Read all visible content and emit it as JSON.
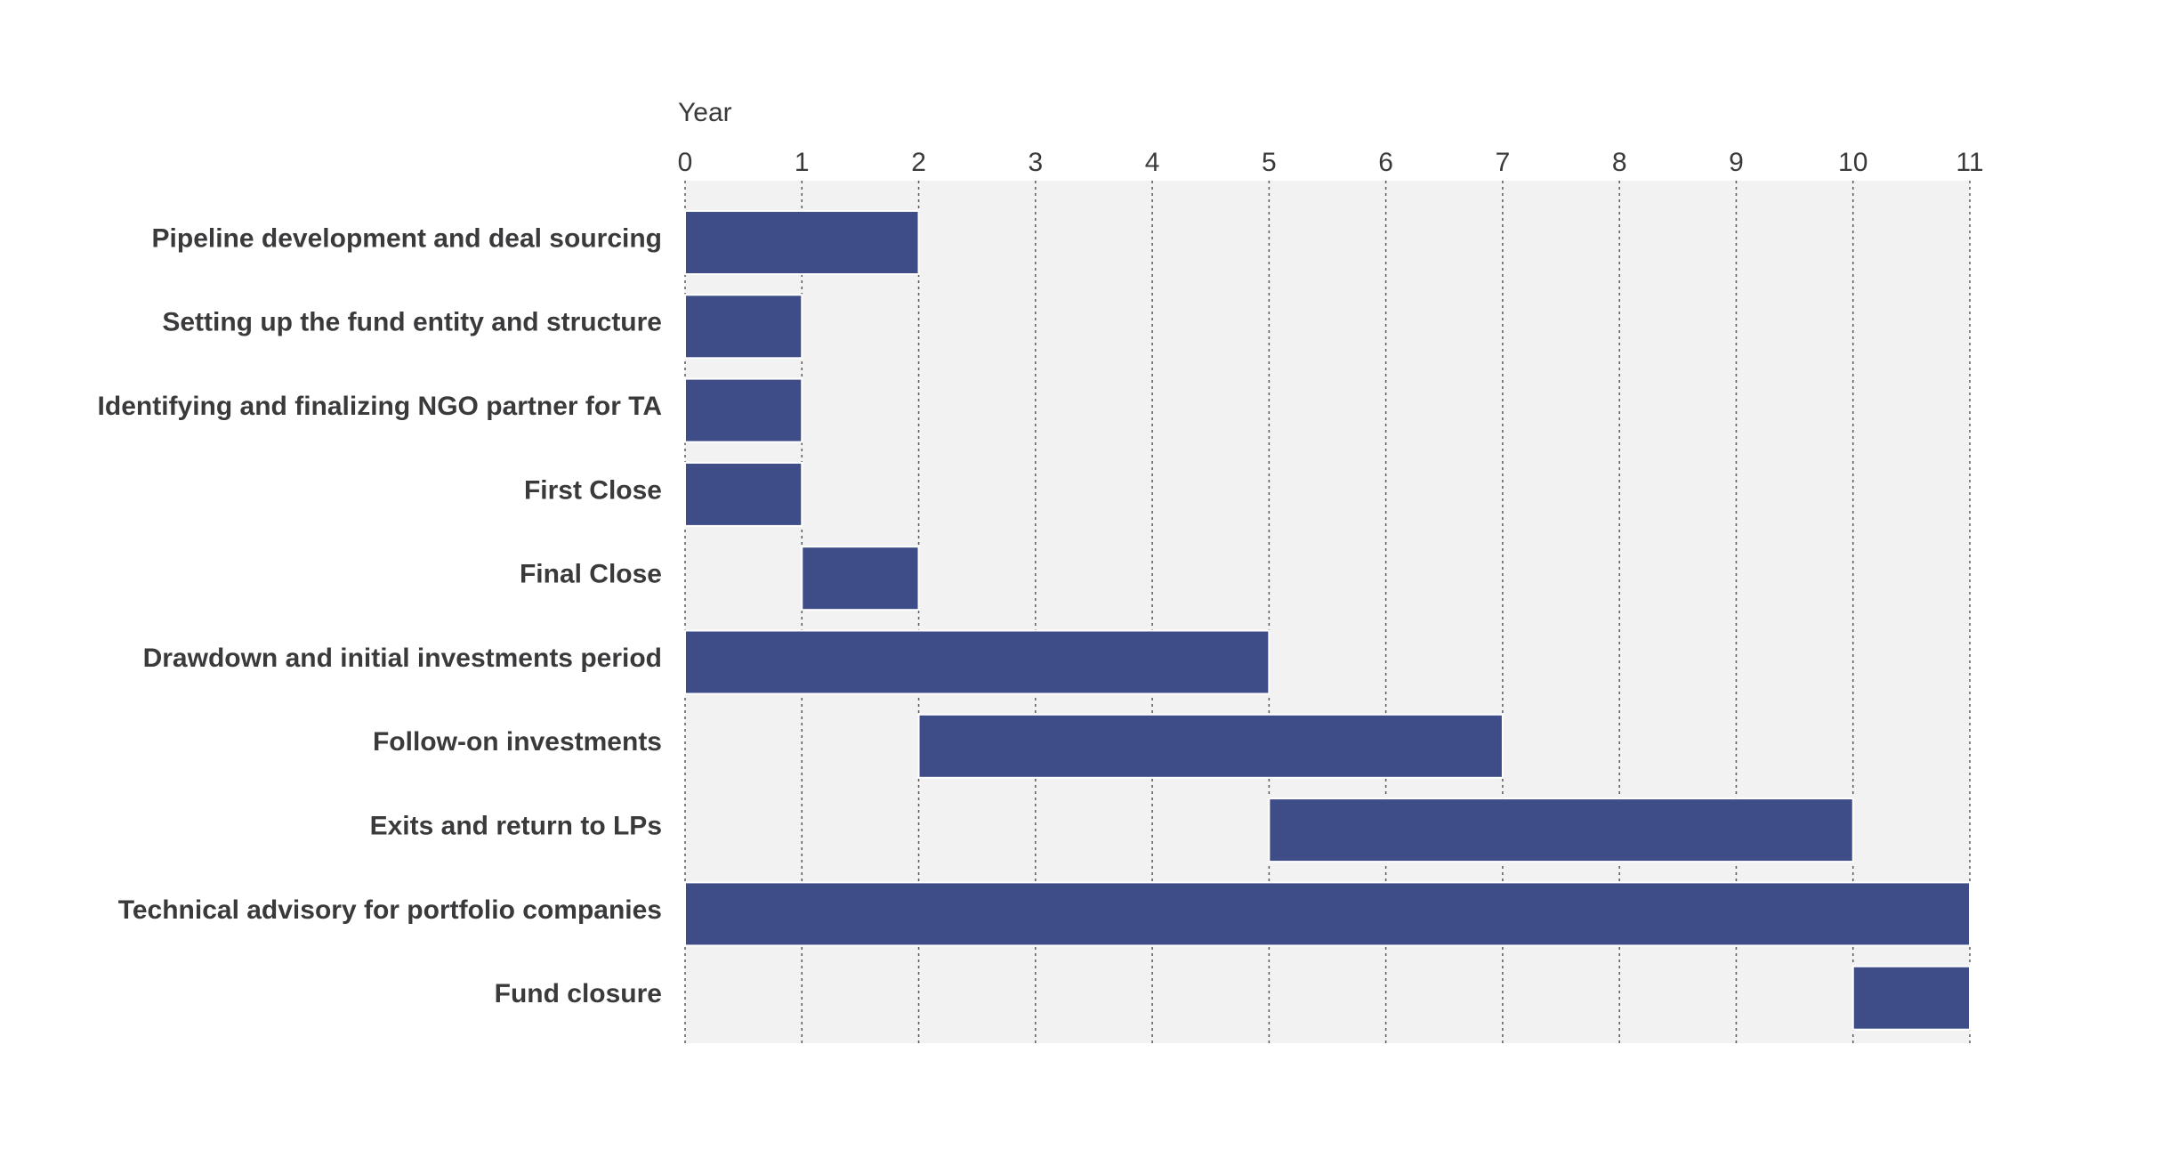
{
  "chart_data": {
    "type": "gantt",
    "xlabel": "Year",
    "xlim": [
      0,
      11
    ],
    "x_ticks": [
      0,
      1,
      2,
      3,
      4,
      5,
      6,
      7,
      8,
      9,
      10,
      11
    ],
    "x_tick_labels": [
      "0",
      "1",
      "2",
      "3",
      "4",
      "5",
      "6",
      "7",
      "8",
      "9",
      "10",
      "11"
    ],
    "grid": "vertical dotted",
    "categories": [
      "Pipeline development and deal sourcing",
      "Setting up the fund entity and structure",
      "Identifying and finalizing NGO partner for TA",
      "First Close",
      "Final Close",
      "Drawdown and initial investments period",
      "Follow-on investments",
      "Exits and return to LPs",
      "Technical advisory for portfolio companies",
      "Fund closure"
    ],
    "tasks": [
      {
        "start": 0,
        "end": 2
      },
      {
        "start": 0,
        "end": 1
      },
      {
        "start": 0,
        "end": 1
      },
      {
        "start": 0,
        "end": 1
      },
      {
        "start": 1,
        "end": 2
      },
      {
        "start": 0,
        "end": 5
      },
      {
        "start": 2,
        "end": 7
      },
      {
        "start": 5,
        "end": 10
      },
      {
        "start": 0,
        "end": 11
      },
      {
        "start": 10,
        "end": 11
      }
    ],
    "colors": {
      "bar": "#3e4c87",
      "bar_edge": "#ffffff",
      "plot_bg": "#f2f2f2",
      "grid": "#5a5a5a",
      "text": "#3a3a3c"
    }
  }
}
